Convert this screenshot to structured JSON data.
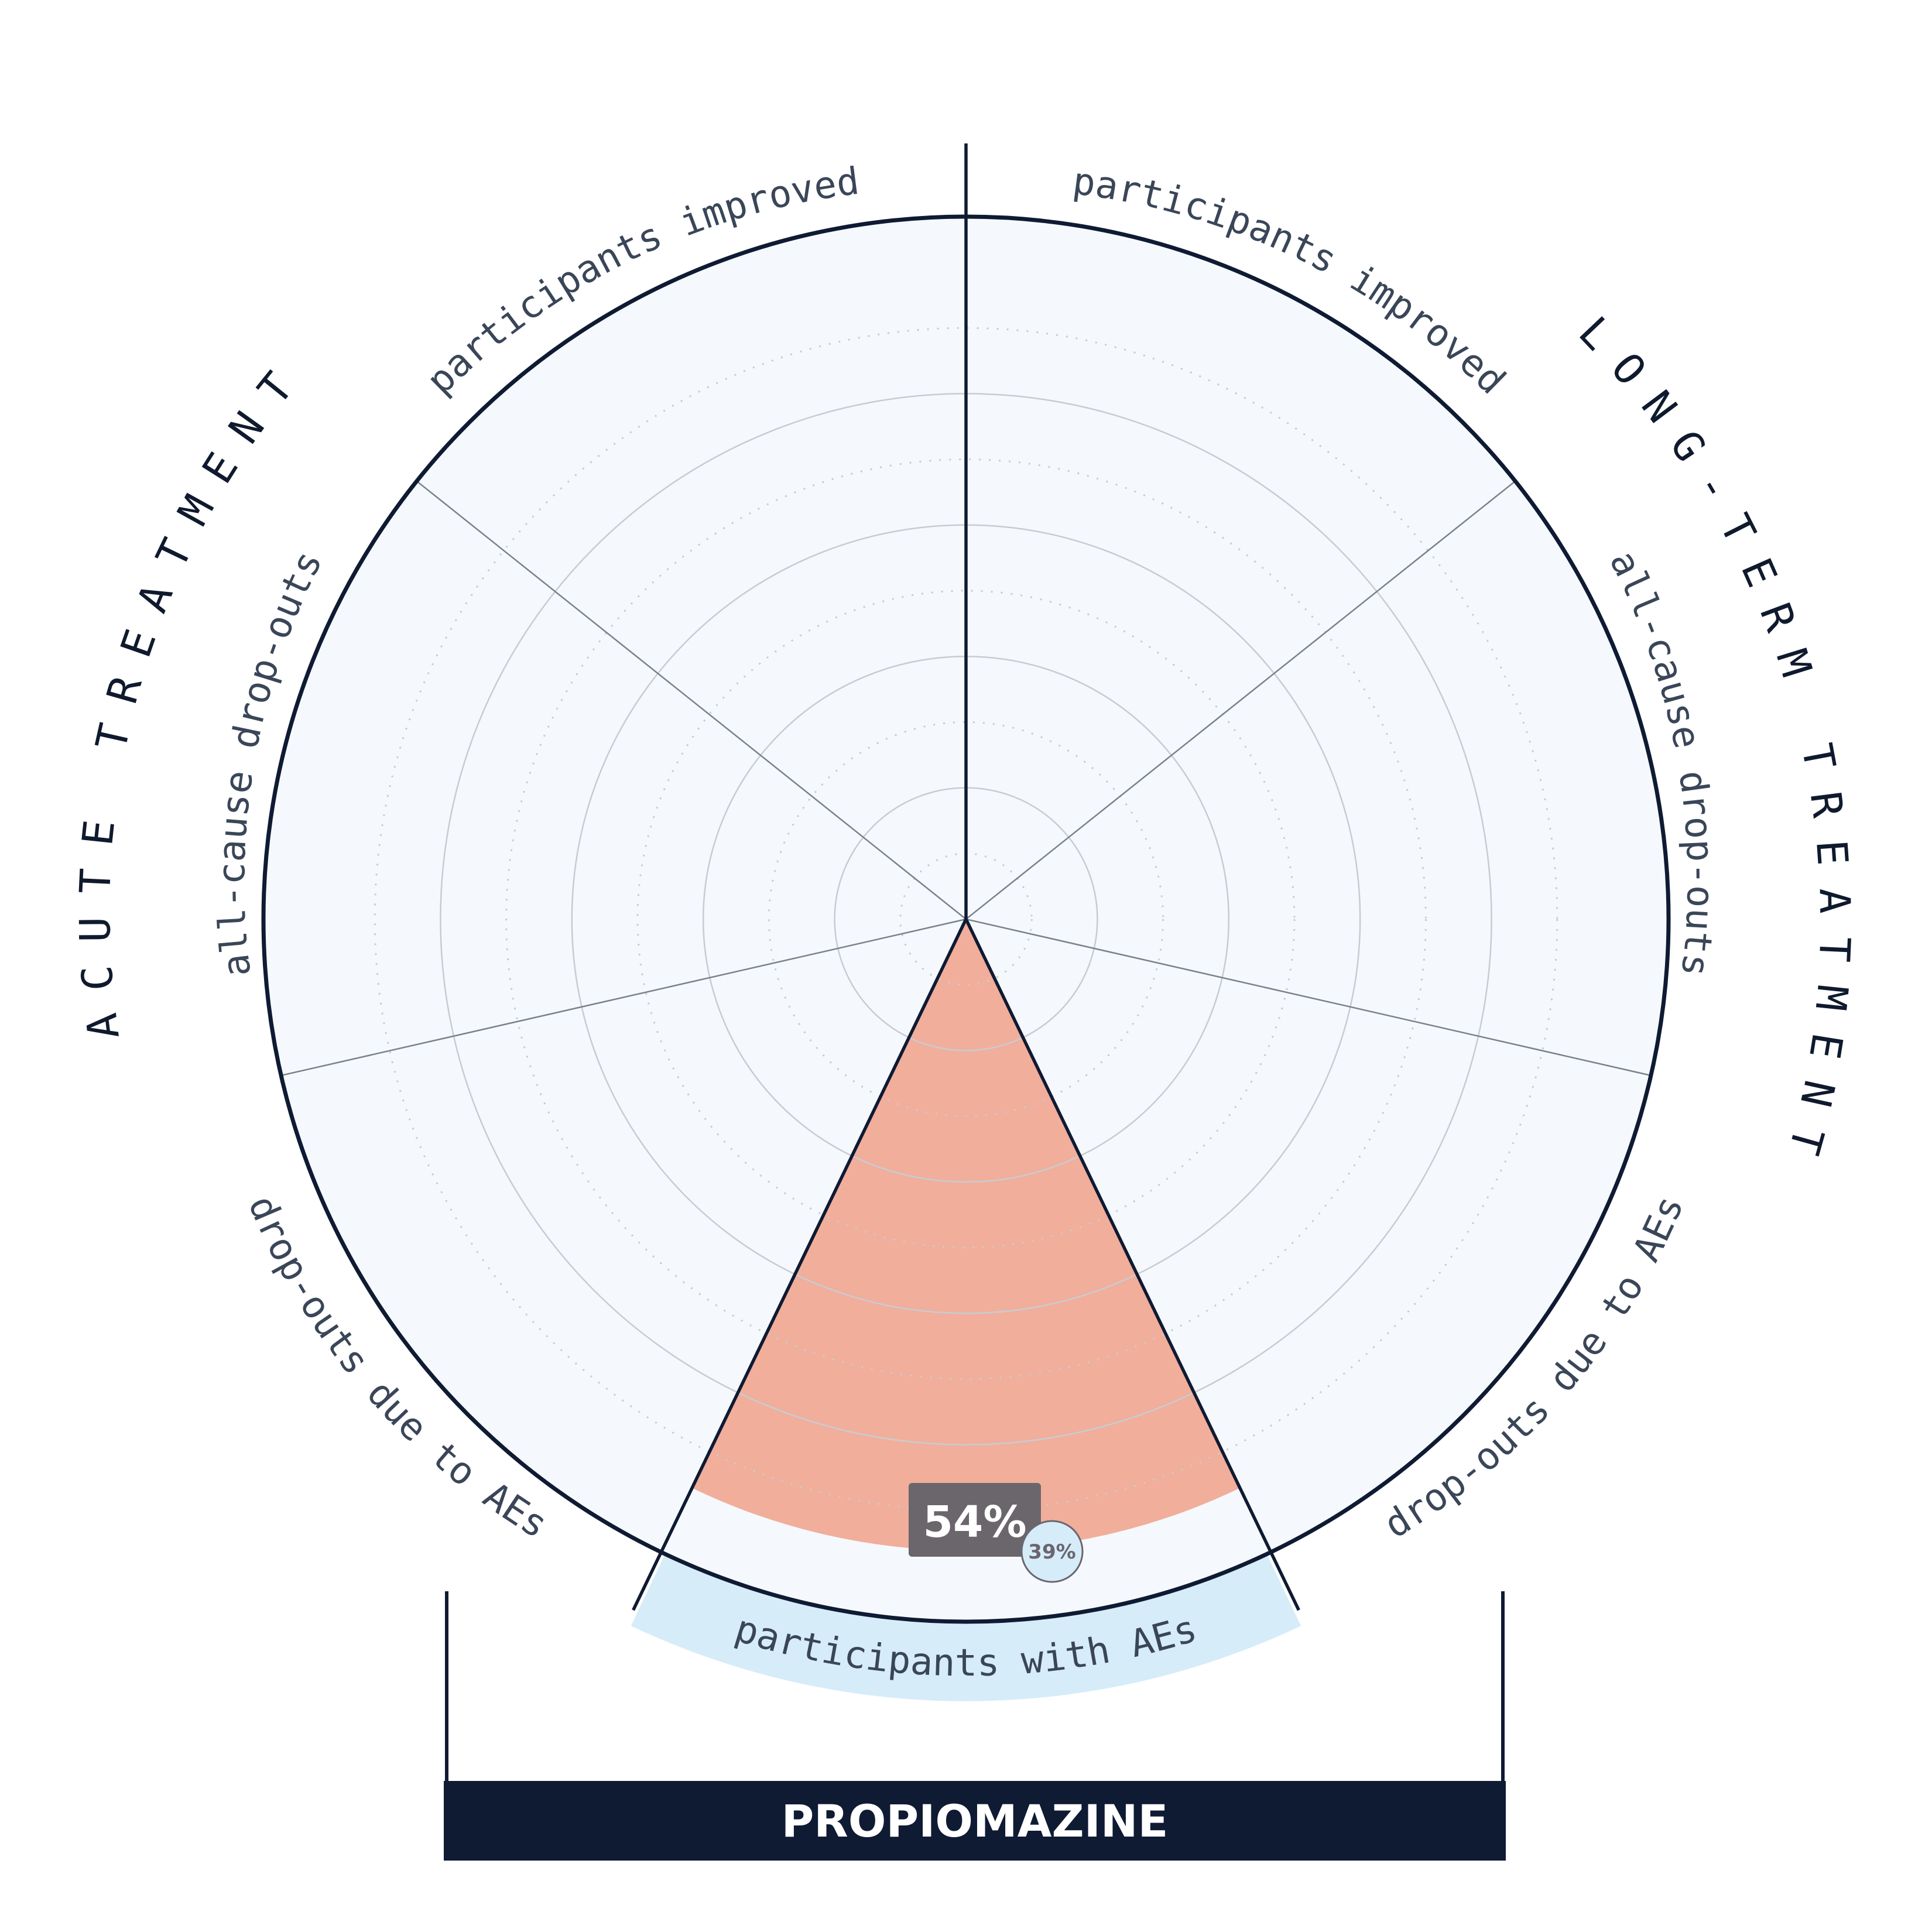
{
  "chart_data": {
    "type": "polar-area",
    "scale_max": 100,
    "grid_rings": [
      10,
      20,
      30,
      40,
      50,
      60,
      70,
      80,
      90,
      100
    ],
    "sectors": [
      {
        "key": "lt_improved",
        "label": "participants improved",
        "group": "long-term",
        "value": null
      },
      {
        "key": "lt_dropouts",
        "label": "all-cause drop-outs",
        "group": "long-term",
        "value": null
      },
      {
        "key": "lt_dropout_ae",
        "label": "drop-outs due to AEs",
        "group": "long-term",
        "value": null
      },
      {
        "key": "ae",
        "label": "participants with AEs",
        "group": "shared",
        "value": 54,
        "value_label": "54%",
        "secondary_label": "39%",
        "highlighted": true
      },
      {
        "key": "ac_dropout_ae",
        "label": "drop-outs due to AEs",
        "group": "acute",
        "value": null
      },
      {
        "key": "ac_dropouts",
        "label": "all-cause drop-outs",
        "group": "acute",
        "value": null
      },
      {
        "key": "ac_improved",
        "label": "participants improved",
        "group": "acute",
        "value": null
      }
    ],
    "groups": {
      "acute": "ACUTE TREATMENT",
      "long_term": "LONG-TERM TREATMENT"
    },
    "drug": "PROPIOMAZINE",
    "colors": {
      "background_disc": "#f5f9fd",
      "sector_fill": "#f1ae9b",
      "highlight_band": "#d6ecf9",
      "outline": "#0f1a33",
      "grid": "#c8ccd2",
      "value_box": "#6b666c",
      "secondary_bubble": "#d6ecf9"
    }
  }
}
